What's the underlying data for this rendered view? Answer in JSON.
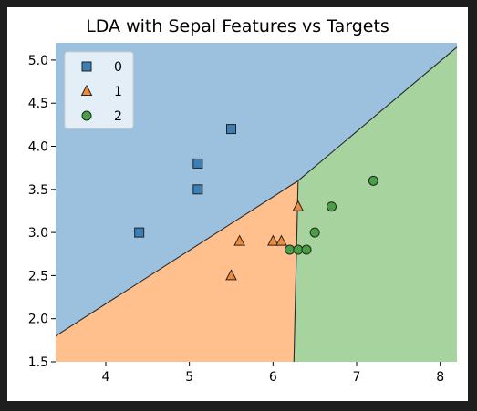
{
  "chart_data": {
    "type": "scatter",
    "title": "LDA with Sepal Features vs Targets",
    "xlabel": "",
    "ylabel": "",
    "xlim": [
      3.4,
      8.2
    ],
    "ylim": [
      1.5,
      5.2
    ],
    "xticks": [
      "4",
      "5",
      "6",
      "7",
      "8"
    ],
    "yticks": [
      "1.5",
      "2.0",
      "2.5",
      "3.0",
      "3.5",
      "4.0",
      "4.5",
      "5.0"
    ],
    "grid": false,
    "legend_position": "top-left",
    "decision_regions": [
      {
        "class": "0",
        "color": "#9bc1df",
        "polygon": [
          [
            3.4,
            1.8
          ],
          [
            6.3,
            3.6
          ],
          [
            8.2,
            5.15
          ],
          [
            8.2,
            5.2
          ],
          [
            3.4,
            5.2
          ]
        ]
      },
      {
        "class": "1",
        "color": "#ffc08e",
        "polygon": [
          [
            3.4,
            1.5
          ],
          [
            6.25,
            1.5
          ],
          [
            6.3,
            3.6
          ],
          [
            3.4,
            1.8
          ]
        ]
      },
      {
        "class": "2",
        "color": "#a7d49e",
        "polygon": [
          [
            6.25,
            1.5
          ],
          [
            8.2,
            1.5
          ],
          [
            8.2,
            5.15
          ],
          [
            6.3,
            3.6
          ]
        ]
      }
    ],
    "boundaries": [
      [
        [
          3.4,
          1.8
        ],
        [
          6.3,
          3.6
        ]
      ],
      [
        [
          6.3,
          3.6
        ],
        [
          8.2,
          5.15
        ]
      ],
      [
        [
          6.3,
          3.6
        ],
        [
          6.25,
          1.5
        ]
      ]
    ],
    "series": [
      {
        "name": "0",
        "marker": "square",
        "color": "#3b7fb6",
        "x": [
          4.4,
          5.1,
          5.1,
          5.5
        ],
        "y": [
          3.0,
          3.5,
          3.8,
          4.2
        ]
      },
      {
        "name": "1",
        "marker": "triangle",
        "color": "#f08a3b",
        "x": [
          5.5,
          5.6,
          6.0,
          6.1,
          6.3
        ],
        "y": [
          2.5,
          2.9,
          2.9,
          2.9,
          3.3
        ]
      },
      {
        "name": "2",
        "marker": "circle",
        "color": "#4a9f45",
        "x": [
          6.2,
          6.3,
          6.4,
          6.5,
          6.7,
          7.2
        ],
        "y": [
          2.8,
          2.8,
          2.8,
          3.0,
          3.3,
          3.6
        ]
      }
    ]
  }
}
